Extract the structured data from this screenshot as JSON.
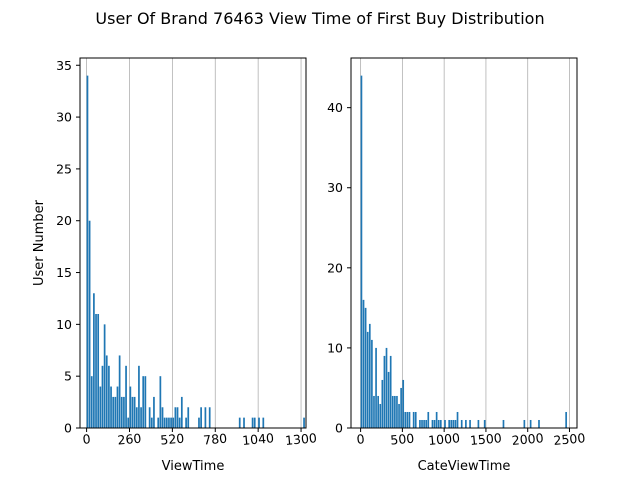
{
  "figure": {
    "title": "User Of Brand 76463 View Time of First Buy Distribution"
  },
  "chart_data": [
    {
      "type": "bar",
      "panel": "left",
      "xlabel": "ViewTime",
      "ylabel": "User Number",
      "xlim": [
        -40,
        1330
      ],
      "ylim": [
        0,
        35.7
      ],
      "xticks": [
        0,
        260,
        520,
        780,
        1040,
        1300
      ],
      "xtick_labels": [
        "0",
        "260",
        "520",
        "780",
        "1040",
        "1300"
      ],
      "yticks": [
        0,
        5,
        10,
        15,
        20,
        25,
        30,
        35
      ],
      "ytick_labels": [
        "0",
        "5",
        "10",
        "15",
        "20",
        "25",
        "30",
        "35"
      ],
      "grid": "x",
      "bar_color": "#1f77b4",
      "bin_width": 13,
      "bins": [
        [
          0,
          34
        ],
        [
          13,
          20
        ],
        [
          26,
          5
        ],
        [
          39,
          13
        ],
        [
          52,
          11
        ],
        [
          65,
          11
        ],
        [
          78,
          4
        ],
        [
          91,
          6
        ],
        [
          104,
          10
        ],
        [
          117,
          7
        ],
        [
          130,
          6
        ],
        [
          143,
          4
        ],
        [
          156,
          3
        ],
        [
          169,
          3
        ],
        [
          182,
          4
        ],
        [
          195,
          7
        ],
        [
          208,
          3
        ],
        [
          221,
          3
        ],
        [
          234,
          6
        ],
        [
          247,
          1
        ],
        [
          260,
          4
        ],
        [
          273,
          3
        ],
        [
          286,
          3
        ],
        [
          299,
          2
        ],
        [
          312,
          6
        ],
        [
          325,
          2
        ],
        [
          338,
          5
        ],
        [
          351,
          5
        ],
        [
          377,
          2
        ],
        [
          390,
          1
        ],
        [
          403,
          3
        ],
        [
          429,
          1
        ],
        [
          442,
          5
        ],
        [
          455,
          2
        ],
        [
          468,
          1
        ],
        [
          481,
          1
        ],
        [
          494,
          1
        ],
        [
          507,
          1
        ],
        [
          520,
          1
        ],
        [
          533,
          2
        ],
        [
          546,
          2
        ],
        [
          559,
          1
        ],
        [
          572,
          3
        ],
        [
          598,
          1
        ],
        [
          611,
          2
        ],
        [
          676,
          1
        ],
        [
          689,
          2
        ],
        [
          715,
          2
        ],
        [
          741,
          2
        ],
        [
          923,
          1
        ],
        [
          949,
          1
        ],
        [
          1001,
          1
        ],
        [
          1014,
          1
        ],
        [
          1040,
          1
        ],
        [
          1066,
          1
        ],
        [
          1313,
          1
        ]
      ]
    },
    {
      "type": "bar",
      "panel": "right",
      "xlabel": "CateViewTime",
      "ylabel": "",
      "xlim": [
        -115,
        2590
      ],
      "ylim": [
        0,
        46.2
      ],
      "xticks": [
        0,
        500,
        1000,
        1500,
        2000,
        2500
      ],
      "xtick_labels": [
        "0",
        "500",
        "1000",
        "1500",
        "2000",
        "2500"
      ],
      "yticks": [
        0,
        10,
        20,
        30,
        40
      ],
      "ytick_labels": [
        "0",
        "10",
        "20",
        "30",
        "40"
      ],
      "grid": "x",
      "bar_color": "#1f77b4",
      "bin_width": 25,
      "bins": [
        [
          0,
          44
        ],
        [
          25,
          16
        ],
        [
          50,
          15
        ],
        [
          75,
          12
        ],
        [
          100,
          13
        ],
        [
          125,
          11
        ],
        [
          150,
          4
        ],
        [
          175,
          10
        ],
        [
          200,
          4
        ],
        [
          225,
          3
        ],
        [
          250,
          6
        ],
        [
          275,
          9
        ],
        [
          300,
          10
        ],
        [
          325,
          7
        ],
        [
          350,
          9
        ],
        [
          375,
          4
        ],
        [
          400,
          4
        ],
        [
          425,
          4
        ],
        [
          450,
          3
        ],
        [
          475,
          5
        ],
        [
          500,
          6
        ],
        [
          525,
          2
        ],
        [
          550,
          2
        ],
        [
          575,
          2
        ],
        [
          625,
          2
        ],
        [
          650,
          2
        ],
        [
          700,
          1
        ],
        [
          725,
          1
        ],
        [
          750,
          1
        ],
        [
          775,
          1
        ],
        [
          800,
          2
        ],
        [
          850,
          1
        ],
        [
          875,
          1
        ],
        [
          900,
          2
        ],
        [
          925,
          1
        ],
        [
          950,
          1
        ],
        [
          1000,
          1
        ],
        [
          1050,
          1
        ],
        [
          1075,
          1
        ],
        [
          1100,
          1
        ],
        [
          1125,
          1
        ],
        [
          1150,
          2
        ],
        [
          1200,
          1
        ],
        [
          1250,
          1
        ],
        [
          1300,
          1
        ],
        [
          1400,
          1
        ],
        [
          1475,
          1
        ],
        [
          1700,
          1
        ],
        [
          1950,
          1
        ],
        [
          2025,
          1
        ],
        [
          2125,
          1
        ],
        [
          2450,
          2
        ]
      ]
    }
  ]
}
